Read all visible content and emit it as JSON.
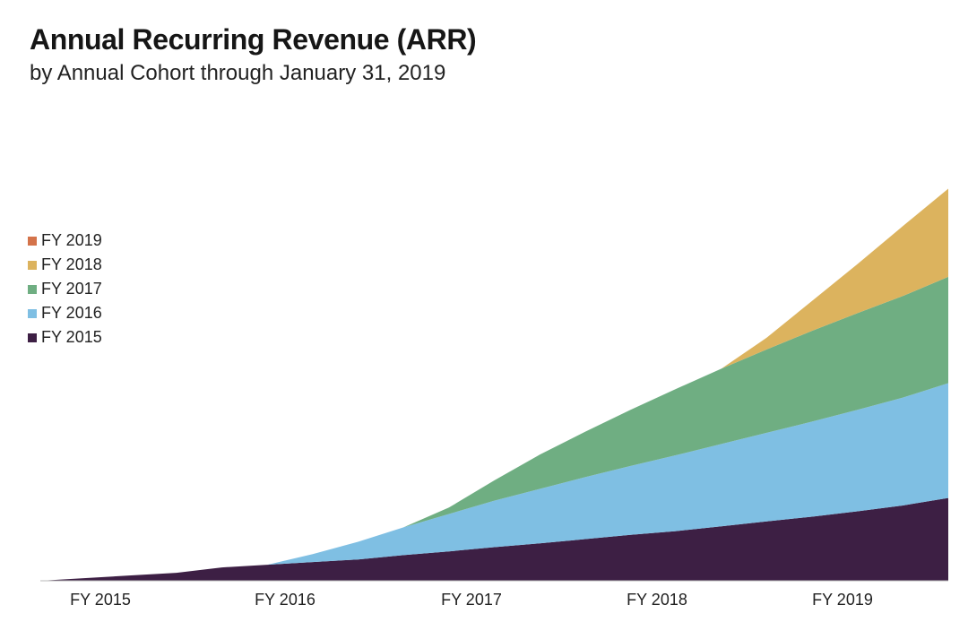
{
  "title": "Annual Recurring Revenue (ARR)",
  "subtitle": "by Annual Cohort through January 31, 2019",
  "chart_data": {
    "type": "area",
    "stacked": true,
    "title": "Annual Recurring Revenue (ARR)",
    "subtitle": "by Annual Cohort through January 31, 2019",
    "xlabel": "",
    "ylabel": "",
    "x_ticks": [
      "FY 2015",
      "FY 2016",
      "FY 2017",
      "FY 2018",
      "FY 2019"
    ],
    "y_axis_labeled": false,
    "ylim": [
      0,
      100
    ],
    "grid": false,
    "legend_position": "left",
    "x": [
      0.0,
      0.25,
      0.5,
      0.75,
      1.0,
      1.25,
      1.5,
      1.75,
      2.0,
      2.25,
      2.5,
      2.75,
      3.0,
      3.25,
      3.5,
      3.75,
      4.0,
      4.25,
      4.5,
      4.75,
      5.0
    ],
    "series": [
      {
        "name": "FY 2015",
        "color": "#3d1f44",
        "values": [
          0.0,
          0.5,
          1.0,
          1.5,
          2.5,
          3.0,
          3.5,
          4.0,
          4.8,
          5.5,
          6.3,
          7.0,
          7.8,
          8.6,
          9.3,
          10.2,
          11.1,
          12.0,
          13.0,
          14.1,
          15.5
        ]
      },
      {
        "name": "FY 2016",
        "color": "#7fbfe3",
        "values": [
          0.0,
          0.0,
          0.0,
          0.0,
          0.0,
          0.0,
          1.5,
          3.3,
          5.2,
          7.0,
          8.7,
          10.2,
          11.6,
          12.9,
          14.2,
          15.4,
          16.6,
          17.8,
          19.0,
          20.2,
          21.5
        ]
      },
      {
        "name": "FY 2017",
        "color": "#6fae82",
        "values": [
          0.0,
          0.0,
          0.0,
          0.0,
          0.0,
          0.0,
          0.0,
          0.0,
          0.0,
          1.2,
          3.8,
          6.4,
          8.5,
          10.5,
          12.4,
          14.1,
          15.6,
          17.0,
          18.1,
          19.0,
          19.9
        ]
      },
      {
        "name": "FY 2018",
        "color": "#dcb35e",
        "values": [
          0.0,
          0.0,
          0.0,
          0.0,
          0.0,
          0.0,
          0.0,
          0.0,
          0.0,
          0.0,
          0.0,
          0.0,
          0.0,
          0.0,
          0.0,
          0.0,
          2.2,
          5.6,
          9.2,
          13.1,
          16.5
        ]
      },
      {
        "name": "FY 2019",
        "color": "#d4734a",
        "values": [
          0.0,
          0.0,
          0.0,
          0.0,
          0.0,
          0.0,
          0.0,
          0.0,
          0.0,
          0.0,
          0.0,
          0.0,
          0.0,
          0.0,
          0.0,
          0.0,
          0.0,
          0.0,
          0.0,
          0.0,
          0.0
        ]
      }
    ]
  }
}
